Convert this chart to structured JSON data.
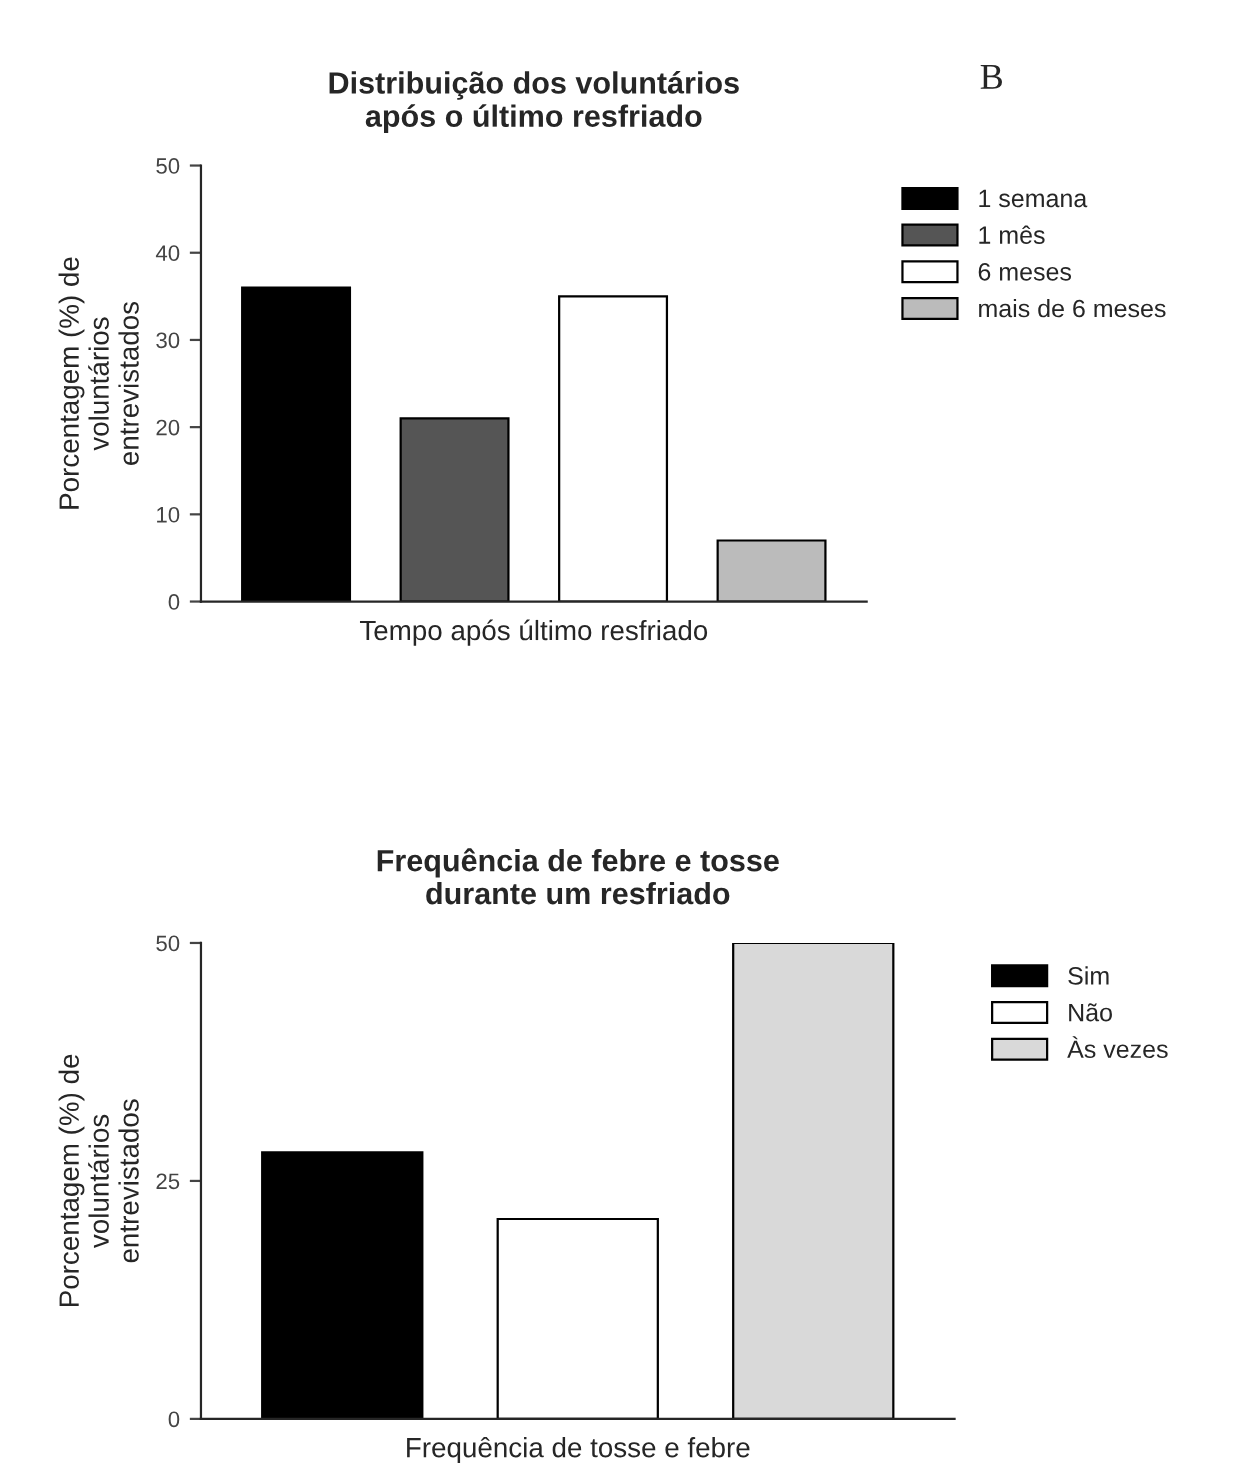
{
  "chart_data": [
    {
      "type": "bar",
      "title": "Distribuição dos voluntários\napós o último resfriado",
      "xlabel": "Tempo após último resfriado",
      "ylabel": "Porcentagem (%) de\nvoluntários\nentrevistados",
      "categories": [
        null,
        null,
        null,
        null
      ],
      "series": [
        {
          "name": "1 semana",
          "color": "#000000",
          "values": [
            36,
            null,
            null,
            null
          ]
        },
        {
          "name": "1 mês",
          "color": "#555555",
          "values": [
            null,
            21,
            null,
            null
          ]
        },
        {
          "name": "6 meses",
          "color": "#ffffff",
          "values": [
            null,
            null,
            35,
            null
          ]
        },
        {
          "name": "mais de 6 meses",
          "color": "#bbbbbb",
          "values": [
            null,
            null,
            null,
            7
          ]
        }
      ],
      "ylim": [
        0,
        50
      ],
      "yticks": [
        0,
        10,
        20,
        30,
        40,
        50
      ],
      "legend": "right",
      "annotations": [
        "B"
      ]
    },
    {
      "type": "bar",
      "title": "Frequência de febre e tosse\ndurante um resfriado",
      "xlabel": "Frequência de tosse e febre",
      "ylabel": "Porcentagem (%) de\nvoluntários\nentrevistados",
      "categories": [
        null,
        null,
        null
      ],
      "series": [
        {
          "name": "Sim",
          "color": "#000000",
          "values": [
            28,
            null,
            null
          ]
        },
        {
          "name": "Não",
          "color": "#ffffff",
          "values": [
            null,
            21,
            null
          ]
        },
        {
          "name": "Às vezes",
          "color": "#d9d9d9",
          "values": [
            null,
            null,
            50
          ]
        }
      ],
      "ylim": [
        0,
        50
      ],
      "yticks": [
        0,
        25,
        50
      ],
      "legend": "right"
    }
  ]
}
